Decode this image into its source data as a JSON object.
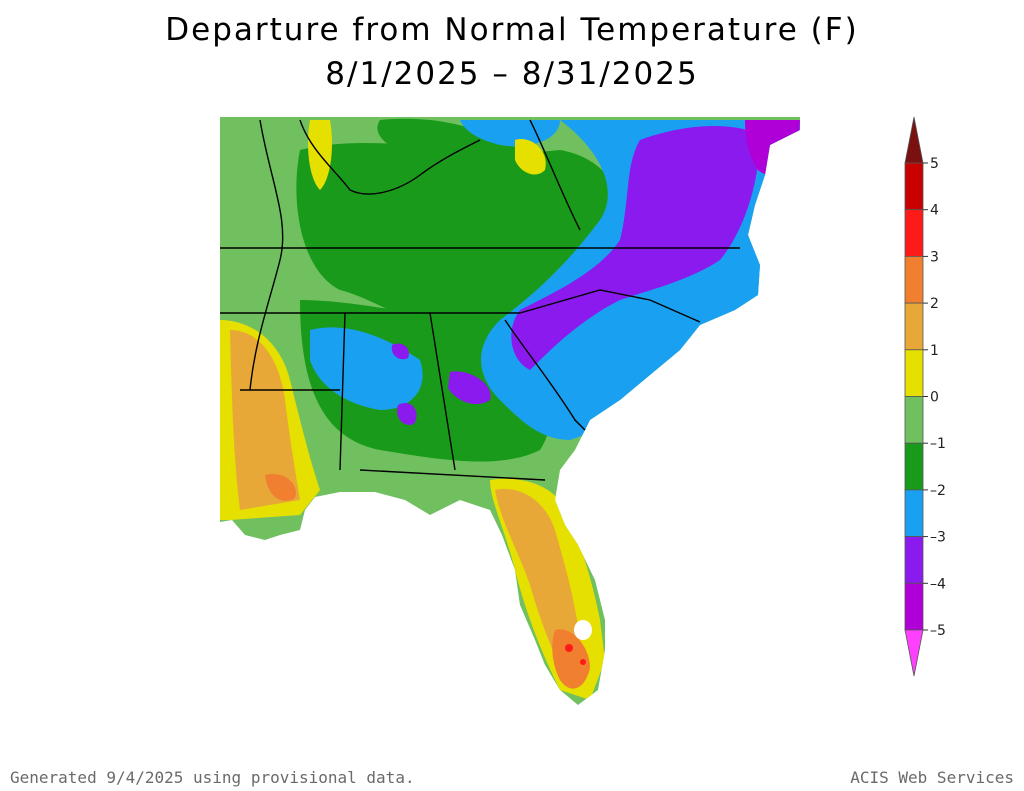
{
  "title": "Departure from Normal Temperature (F)",
  "date_range": "8/1/2025 – 8/31/2025",
  "legend": {
    "ticks": [
      "5",
      "4",
      "3",
      "2",
      "1",
      "0",
      "–1",
      "–2",
      "–3",
      "–4",
      "–5"
    ],
    "bins": [
      {
        "range": "above 5",
        "color": "#7a1010"
      },
      {
        "range": "4 to 5",
        "color": "#c80000"
      },
      {
        "range": "3 to 4",
        "color": "#ff1a1a"
      },
      {
        "range": "2 to 3",
        "color": "#f08030"
      },
      {
        "range": "1 to 2",
        "color": "#e8a838"
      },
      {
        "range": "0 to 1",
        "color": "#e6e000"
      },
      {
        "range": "-1 to 0",
        "color": "#70c060"
      },
      {
        "range": "-2 to -1",
        "color": "#1a9a1a"
      },
      {
        "range": "-3 to -2",
        "color": "#1aa0f0"
      },
      {
        "range": "-4 to -3",
        "color": "#8a1aee"
      },
      {
        "range": "-5 to -4",
        "color": "#b000d8"
      },
      {
        "range": "below -5",
        "color": "#ff40ff"
      }
    ]
  },
  "regions": [
    {
      "name": "Florida peninsula",
      "departure": "1 to 3"
    },
    {
      "name": "South Florida",
      "departure": "3 to 4"
    },
    {
      "name": "Gulf coast Louisiana",
      "departure": "0 to 2"
    },
    {
      "name": "Virginia and North Carolina",
      "departure": "-3 to -5"
    },
    {
      "name": "Kentucky and Tennessee",
      "departure": "-1 to -2"
    },
    {
      "name": "Alabama and Georgia",
      "departure": "-1 to -3"
    }
  ],
  "footer": {
    "generated": "Generated 9/4/2025 using provisional data.",
    "credit": "ACIS Web Services"
  }
}
